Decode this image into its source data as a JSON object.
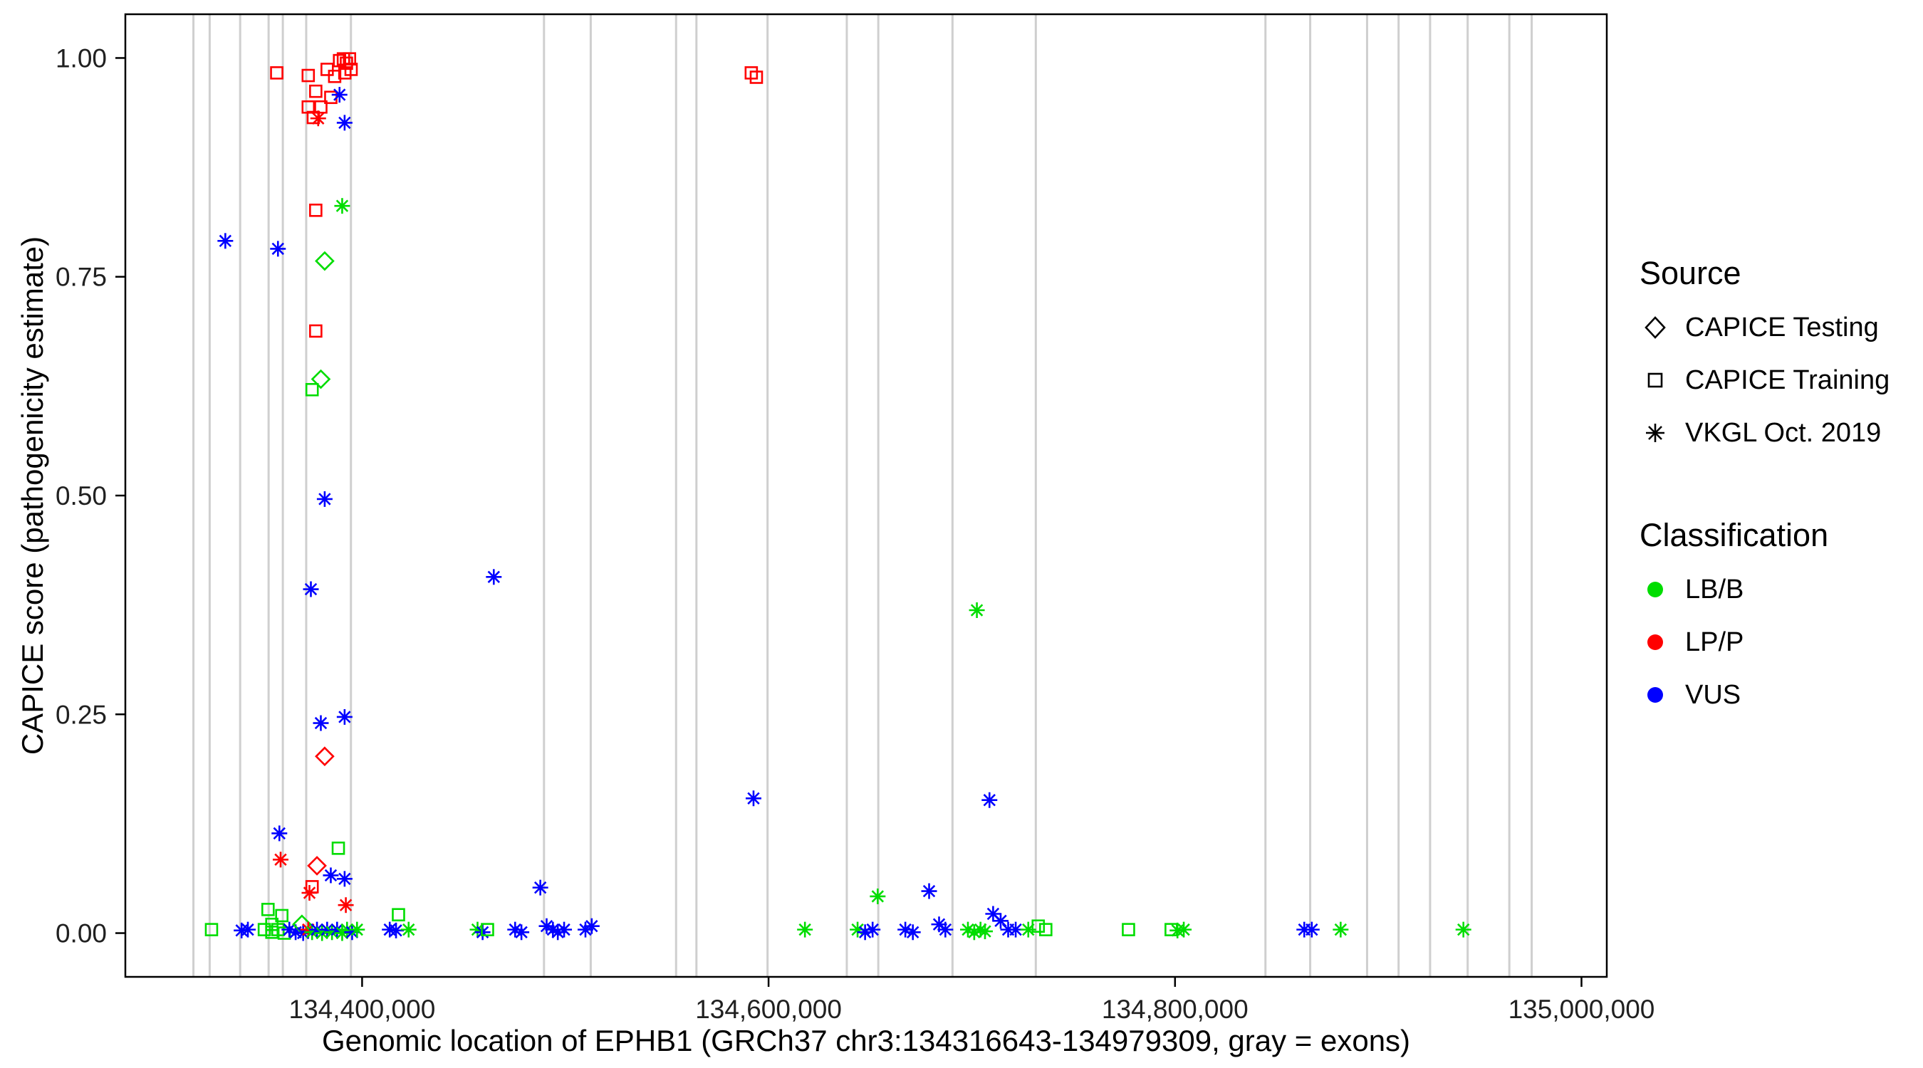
{
  "colors": {
    "lbb": "#00DD00",
    "lpp": "#FF0000",
    "vus": "#0000FF",
    "exon": "#CFCFCF",
    "axis": "#000000",
    "tick_text": "#202020"
  },
  "chart_data": {
    "type": "scatter",
    "title": "",
    "xlabel": "Genomic location of EPHB1 (GRCh37 chr3:134316643-134979309, gray = exons)",
    "ylabel": "CAPICE score (pathogenicity estimate)",
    "xlim": [
      134283510,
      135012442
    ],
    "ylim": [
      -0.05,
      1.05
    ],
    "grid": false,
    "legend_position": "right",
    "x_ticks": [
      {
        "value": 134400000,
        "label": "134,400,000"
      },
      {
        "value": 134600000,
        "label": "134,600,000"
      },
      {
        "value": 134800000,
        "label": "134,800,000"
      },
      {
        "value": 135000000,
        "label": "135,000,000"
      }
    ],
    "y_ticks": [
      {
        "value": 0.0,
        "label": "0.00"
      },
      {
        "value": 0.25,
        "label": "0.25"
      },
      {
        "value": 0.5,
        "label": "0.50"
      },
      {
        "value": 0.75,
        "label": "0.75"
      },
      {
        "value": 1.0,
        "label": "1.00"
      }
    ],
    "exons_note": "gray vertical lines = exon locations (genomic coordinate)",
    "exons": [
      134317000,
      134325000,
      134340000,
      134354000,
      134361000,
      134372500,
      134394500,
      134489500,
      134512500,
      134554500,
      134564500,
      134599500,
      134638500,
      134654000,
      134690500,
      134731500,
      134844500,
      134866500,
      134894500,
      134910000,
      134925500,
      134944000,
      134964500,
      134975500
    ],
    "legend": {
      "source": {
        "title": "Source",
        "items": [
          {
            "shape": "diamond",
            "label": "CAPICE Testing"
          },
          {
            "shape": "square",
            "label": "CAPICE Training"
          },
          {
            "shape": "asterisk",
            "label": "VKGL Oct. 2019"
          }
        ]
      },
      "classification": {
        "title": "Classification",
        "items": [
          {
            "color_key": "lbb",
            "label": "LB/B"
          },
          {
            "color_key": "lpp",
            "label": "LP/P"
          },
          {
            "color_key": "vus",
            "label": "VUS"
          }
        ]
      }
    },
    "points_format": "[genomic_position, capice_score, shape(d=diamond,s=square,a=asterisk), classification(lbb|lpp|vus)]",
    "points": [
      [
        134358000,
        0.983,
        "s",
        "lpp"
      ],
      [
        134373500,
        0.98,
        "s",
        "lpp"
      ],
      [
        134377200,
        0.962,
        "s",
        "lpp"
      ],
      [
        134382800,
        0.987,
        "s",
        "lpp"
      ],
      [
        134386500,
        0.979,
        "s",
        "lpp"
      ],
      [
        134388900,
        0.997,
        "s",
        "lpp"
      ],
      [
        134390800,
        0.999,
        "s",
        "lpp"
      ],
      [
        134392300,
        0.994,
        "s",
        "lpp"
      ],
      [
        134393800,
        0.999,
        "s",
        "lpp"
      ],
      [
        134394600,
        0.987,
        "s",
        "lpp"
      ],
      [
        134391500,
        0.983,
        "s",
        "lpp"
      ],
      [
        134373500,
        0.944,
        "s",
        "lpp"
      ],
      [
        134376000,
        0.932,
        "s",
        "lpp"
      ],
      [
        134379700,
        0.944,
        "s",
        "lpp"
      ],
      [
        134384600,
        0.955,
        "s",
        "lpp"
      ],
      [
        134378400,
        0.931,
        "a",
        "lpp"
      ],
      [
        134388900,
        0.958,
        "a",
        "vus"
      ],
      [
        134391400,
        0.926,
        "a",
        "vus"
      ],
      [
        134591500,
        0.983,
        "s",
        "lpp"
      ],
      [
        134594000,
        0.978,
        "s",
        "lpp"
      ],
      [
        134377200,
        0.826,
        "s",
        "lpp"
      ],
      [
        134390200,
        0.831,
        "a",
        "lbb"
      ],
      [
        134381600,
        0.768,
        "d",
        "lbb"
      ],
      [
        134377200,
        0.688,
        "s",
        "lpp"
      ],
      [
        134379700,
        0.633,
        "d",
        "lbb"
      ],
      [
        134375400,
        0.621,
        "s",
        "lbb"
      ],
      [
        134332700,
        0.791,
        "a",
        "vus"
      ],
      [
        134358600,
        0.782,
        "a",
        "vus"
      ],
      [
        134381600,
        0.496,
        "a",
        "vus"
      ],
      [
        134374800,
        0.393,
        "a",
        "vus"
      ],
      [
        134464800,
        0.407,
        "a",
        "vus"
      ],
      [
        134379700,
        0.24,
        "a",
        "vus"
      ],
      [
        134391400,
        0.247,
        "a",
        "vus"
      ],
      [
        134381600,
        0.202,
        "d",
        "lpp"
      ],
      [
        134592600,
        0.154,
        "a",
        "vus"
      ],
      [
        134702500,
        0.369,
        "a",
        "lbb"
      ],
      [
        134708700,
        0.152,
        "a",
        "vus"
      ],
      [
        134359300,
        0.114,
        "a",
        "vus"
      ],
      [
        134359900,
        0.084,
        "a",
        "lpp"
      ],
      [
        134388300,
        0.097,
        "s",
        "lbb"
      ],
      [
        134377800,
        0.077,
        "d",
        "lpp"
      ],
      [
        134384600,
        0.066,
        "a",
        "vus"
      ],
      [
        134391400,
        0.062,
        "a",
        "vus"
      ],
      [
        134375400,
        0.053,
        "s",
        "lpp"
      ],
      [
        134374100,
        0.046,
        "a",
        "lpp"
      ],
      [
        134392000,
        0.032,
        "a",
        "lpp"
      ],
      [
        134353700,
        0.027,
        "s",
        "lbb"
      ],
      [
        134360500,
        0.02,
        "s",
        "lbb"
      ],
      [
        134355600,
        0.01,
        "s",
        "lbb"
      ],
      [
        134325900,
        0.004,
        "s",
        "lbb"
      ],
      [
        134340700,
        0.003,
        "a",
        "vus"
      ],
      [
        134343800,
        0.004,
        "a",
        "vus"
      ],
      [
        134351900,
        0.004,
        "s",
        "lbb"
      ],
      [
        134355600,
        0.001,
        "s",
        "lbb"
      ],
      [
        134358600,
        0.004,
        "s",
        "lbb"
      ],
      [
        134361700,
        0.0,
        "s",
        "lbb"
      ],
      [
        134364200,
        0.004,
        "a",
        "vus"
      ],
      [
        134367300,
        0.001,
        "a",
        "vus"
      ],
      [
        134370400,
        0.01,
        "d",
        "lbb"
      ],
      [
        134371000,
        0.0,
        "a",
        "vus"
      ],
      [
        134373500,
        0.004,
        "a",
        "lpp"
      ],
      [
        134375400,
        0.001,
        "a",
        "lbb"
      ],
      [
        134377800,
        0.004,
        "a",
        "vus"
      ],
      [
        134380300,
        0.0,
        "a",
        "lbb"
      ],
      [
        134382800,
        0.004,
        "a",
        "vus"
      ],
      [
        134385200,
        0.001,
        "a",
        "lbb"
      ],
      [
        134387700,
        0.004,
        "a",
        "vus"
      ],
      [
        134390200,
        0.0,
        "a",
        "lbb"
      ],
      [
        134392600,
        0.004,
        "a",
        "lbb"
      ],
      [
        134395100,
        0.001,
        "a",
        "vus"
      ],
      [
        134397500,
        0.004,
        "a",
        "lbb"
      ],
      [
        134413600,
        0.004,
        "a",
        "vus"
      ],
      [
        134416700,
        0.003,
        "a",
        "vus"
      ],
      [
        134417900,
        0.021,
        "s",
        "lbb"
      ],
      [
        134422900,
        0.004,
        "a",
        "lbb"
      ],
      [
        134456800,
        0.004,
        "a",
        "lbb"
      ],
      [
        134459300,
        0.001,
        "a",
        "vus"
      ],
      [
        134461700,
        0.004,
        "s",
        "lbb"
      ],
      [
        134475300,
        0.004,
        "a",
        "vus"
      ],
      [
        134478400,
        0.001,
        "a",
        "vus"
      ],
      [
        134487700,
        0.052,
        "a",
        "vus"
      ],
      [
        134490800,
        0.008,
        "a",
        "vus"
      ],
      [
        134493900,
        0.004,
        "a",
        "vus"
      ],
      [
        134496300,
        0.001,
        "a",
        "vus"
      ],
      [
        134499400,
        0.004,
        "a",
        "vus"
      ],
      [
        134509900,
        0.004,
        "a",
        "vus"
      ],
      [
        134513000,
        0.008,
        "a",
        "vus"
      ],
      [
        134617900,
        0.004,
        "a",
        "lbb"
      ],
      [
        134643800,
        0.004,
        "a",
        "lbb"
      ],
      [
        134647500,
        0.001,
        "a",
        "vus"
      ],
      [
        134651200,
        0.004,
        "a",
        "vus"
      ],
      [
        134653700,
        0.042,
        "a",
        "lbb"
      ],
      [
        134667300,
        0.004,
        "a",
        "vus"
      ],
      [
        134671000,
        0.001,
        "a",
        "vus"
      ],
      [
        134679000,
        0.048,
        "a",
        "vus"
      ],
      [
        134683900,
        0.01,
        "a",
        "vus"
      ],
      [
        134687000,
        0.004,
        "a",
        "vus"
      ],
      [
        134698100,
        0.004,
        "a",
        "lbb"
      ],
      [
        134701200,
        0.001,
        "a",
        "lbb"
      ],
      [
        134704300,
        0.004,
        "a",
        "lbb"
      ],
      [
        134706500,
        0.002,
        "a",
        "lbb"
      ],
      [
        134710500,
        0.022,
        "a",
        "vus"
      ],
      [
        134714200,
        0.014,
        "a",
        "vus"
      ],
      [
        134717900,
        0.004,
        "a",
        "vus"
      ],
      [
        134721600,
        0.004,
        "a",
        "vus"
      ],
      [
        134727800,
        0.004,
        "a",
        "lbb"
      ],
      [
        134732700,
        0.008,
        "s",
        "lbb"
      ],
      [
        134736400,
        0.004,
        "s",
        "lbb"
      ],
      [
        134777100,
        0.004,
        "s",
        "lbb"
      ],
      [
        134798100,
        0.004,
        "s",
        "lbb"
      ],
      [
        134801200,
        0.003,
        "a",
        "lbb"
      ],
      [
        134804300,
        0.004,
        "a",
        "lbb"
      ],
      [
        134863600,
        0.004,
        "a",
        "vus"
      ],
      [
        134867300,
        0.004,
        "a",
        "vus"
      ],
      [
        134881500,
        0.004,
        "a",
        "lbb"
      ],
      [
        134941900,
        0.004,
        "a",
        "lbb"
      ]
    ]
  }
}
